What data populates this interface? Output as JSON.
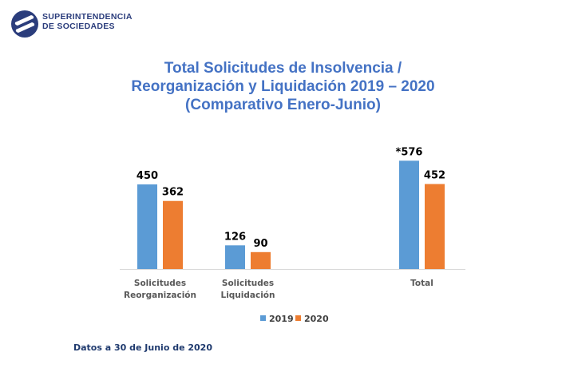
{
  "brand": {
    "line1": "SUPERINTENDENCIA",
    "line2": "DE SOCIEDADES",
    "logo_icon": "superintendencia-logo-icon",
    "color": "#2b3d7c"
  },
  "footnote": "Datos a 30 de Junio de 2020",
  "chart_data": {
    "type": "bar",
    "title": "Total Solicitudes de Insolvencia / Reorganización y Liquidación 2019 – 2020 (Comparativo Enero-Junio)",
    "title_lines": [
      "Total Solicitudes de Insolvencia /",
      "Reorganización y Liquidación 2019 – 2020",
      "(Comparativo Enero-Junio)"
    ],
    "categories": [
      [
        "Solicitudes",
        "Reorganización"
      ],
      [
        "Solicitudes",
        "Liquidación"
      ],
      [
        "Total"
      ]
    ],
    "series": [
      {
        "name": "2019",
        "color": "#5b9bd5",
        "values": [
          450,
          126,
          576
        ],
        "labels": [
          "450",
          "126",
          "*576"
        ]
      },
      {
        "name": "2020",
        "color": "#ed7d31",
        "values": [
          362,
          90,
          452
        ],
        "labels": [
          "362",
          "90",
          "452"
        ]
      }
    ],
    "xlabel": "",
    "ylabel": "",
    "ylim": [
      0,
      600
    ],
    "grid": false,
    "y_axis_visible": false,
    "legend": "bottom",
    "data_labels": true
  }
}
